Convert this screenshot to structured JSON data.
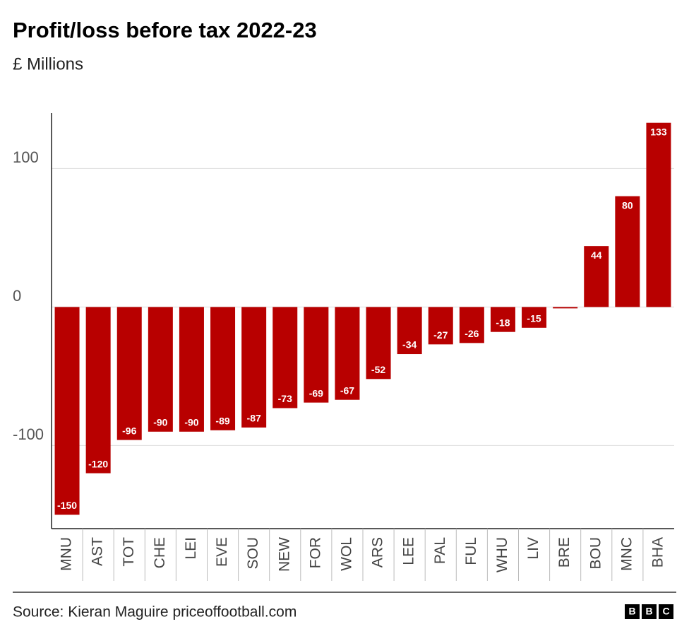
{
  "chart_data": {
    "type": "bar",
    "title": "Profit/loss before tax 2022-23",
    "subtitle": "£ Millions",
    "categories": [
      "MNU",
      "AST",
      "TOT",
      "CHE",
      "LEI",
      "EVE",
      "SOU",
      "NEW",
      "FOR",
      "WOL",
      "ARS",
      "LEE",
      "PAL",
      "FUL",
      "WHU",
      "LIV",
      "BRE",
      "BOU",
      "MNC",
      "BHA"
    ],
    "values": [
      -150,
      -120,
      -96,
      -90,
      -90,
      -89,
      -87,
      -73,
      -69,
      -67,
      -52,
      -34,
      -27,
      -26,
      -18,
      -15,
      -1,
      44,
      80,
      133
    ],
    "value_labels": [
      "-150",
      "-120",
      "-96",
      "-90",
      "-90",
      "-89",
      "-87",
      "-73",
      "-69",
      "-67",
      "-52",
      "-34",
      "-27",
      "-26",
      "-18",
      "-15",
      null,
      "44",
      "80",
      "133"
    ],
    "color": "#b80000",
    "ylim": [
      -160,
      140
    ],
    "yticks": [
      -100,
      0,
      100
    ],
    "grid": true,
    "source": "Source: Kieran Maguire priceoffootball.com",
    "logo": [
      "B",
      "B",
      "C"
    ]
  }
}
